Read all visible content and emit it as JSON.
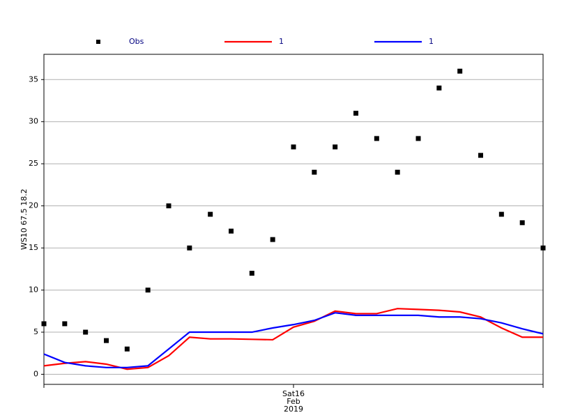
{
  "chart_data": {
    "type": "line",
    "y_label": "WS10 67.5 18.2",
    "categories": [
      null,
      null,
      null,
      null,
      null,
      null,
      null,
      null,
      null,
      null,
      null,
      null,
      "Sat16 Feb 2019",
      null,
      null,
      null,
      null,
      null,
      null,
      null,
      null,
      null,
      null,
      null,
      null
    ],
    "series": [
      {
        "name": "Obs",
        "type": "scatter",
        "color": "#000000",
        "values": [
          6,
          6,
          5,
          4,
          3,
          10,
          20,
          15,
          19,
          17,
          12,
          16,
          27,
          24,
          27,
          31,
          28,
          24,
          28,
          34,
          36,
          26,
          19,
          18,
          15
        ]
      },
      {
        "name": "1",
        "type": "line",
        "color": "#ff0000",
        "values": [
          1.0,
          1.3,
          1.5,
          1.2,
          0.6,
          0.8,
          2.2,
          4.4,
          4.2,
          4.2,
          4.15,
          4.1,
          5.6,
          6.3,
          7.5,
          7.2,
          7.2,
          7.8,
          7.7,
          7.6,
          7.4,
          6.8,
          5.5,
          4.4,
          4.4
        ]
      },
      {
        "name": "1",
        "type": "line",
        "color": "#0000ff",
        "values": [
          2.4,
          1.4,
          1.0,
          0.8,
          0.8,
          1.0,
          3.0,
          5.0,
          5.0,
          5.0,
          5.0,
          5.5,
          5.9,
          6.4,
          7.3,
          7.0,
          7.0,
          7.0,
          7.0,
          6.8,
          6.8,
          6.6,
          6.1,
          5.4,
          4.8
        ]
      }
    ],
    "ylim": [
      -1.2,
      38
    ],
    "yticks": [
      0,
      5,
      10,
      15,
      20,
      25,
      30,
      35
    ],
    "grid": true,
    "legend": "top"
  }
}
